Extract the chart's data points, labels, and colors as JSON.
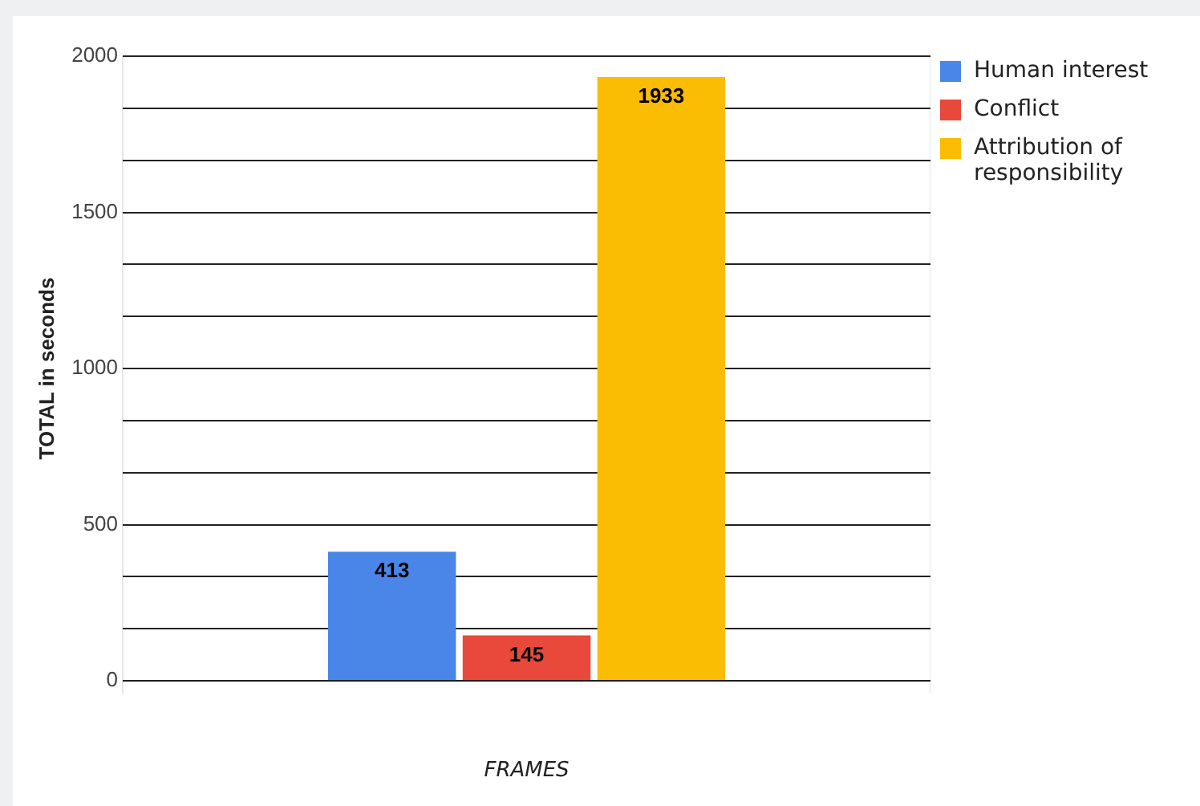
{
  "chart_data": {
    "type": "bar",
    "xlabel": "FRAMES",
    "ylabel": "TOTAL in seconds",
    "categories": [
      null
    ],
    "series": [
      {
        "name": "Human interest",
        "color": "#4a86e8",
        "values": [
          413
        ]
      },
      {
        "name": "Conflict",
        "color": "#e8493a",
        "values": [
          145
        ]
      },
      {
        "name": "Attribution of responsibility",
        "color": "#fbbc04",
        "values": [
          1933
        ]
      }
    ],
    "ylim": [
      0,
      2000
    ],
    "yticks": [
      0,
      {
        "value": 166.7,
        "label": null
      },
      {
        "value": 333.3,
        "label": null
      },
      500,
      {
        "value": 666.7,
        "label": null
      },
      {
        "value": 833.3,
        "label": null
      },
      1000,
      {
        "value": 1166.7,
        "label": null
      },
      {
        "value": 1333.3,
        "label": null
      },
      1500,
      {
        "value": 1666.7,
        "label": null
      },
      {
        "value": 1833.3,
        "label": null
      },
      2000
    ],
    "grid": true,
    "legend": "top right",
    "data_labels": true
  }
}
